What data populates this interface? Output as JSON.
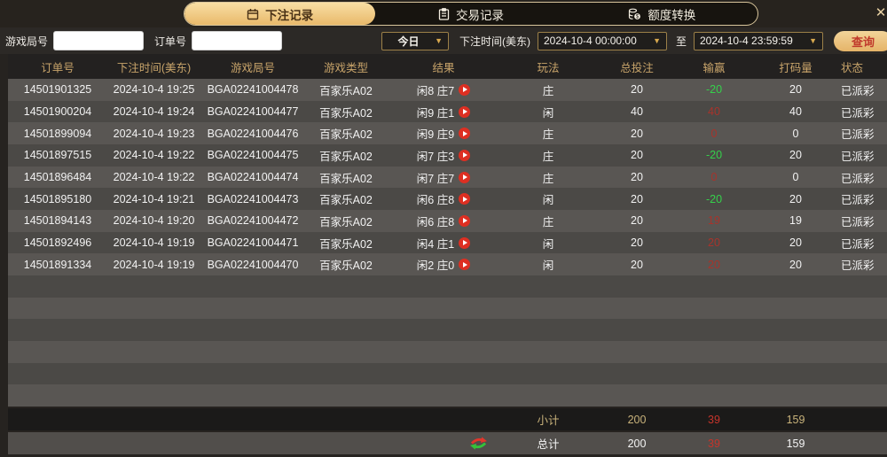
{
  "tabs": [
    {
      "label": "下注记录",
      "icon": "calendar-icon",
      "active": true
    },
    {
      "label": "交易记录",
      "icon": "clipboard-icon",
      "active": false
    },
    {
      "label": "额度转换",
      "icon": "coins-icon",
      "active": false
    }
  ],
  "close_glyph": "✕",
  "filters": {
    "game_round_label": "游戏局号",
    "order_no_label": "订单号",
    "game_round_placeholder": "",
    "order_no_placeholder": "",
    "range_selected": "今日",
    "bet_time_label": "下注时间(美东)",
    "start_time": "2024-10-4 00:00:00",
    "to_label": "至",
    "end_time": "2024-10-4 23:59:59",
    "search_button": "查询",
    "dropdown_arrow": "▼"
  },
  "table": {
    "headers": [
      "订单号",
      "下注时间(美东)",
      "游戏局号",
      "游戏类型",
      "结果",
      "玩法",
      "总投注",
      "输赢",
      "打码量",
      "状态"
    ],
    "rows": [
      {
        "order": "14501901325",
        "time": "2024-10-4 19:25",
        "round": "BGA02241004478",
        "game": "百家乐A02",
        "result": "闲8 庄7",
        "play": "庄",
        "bet": "20",
        "winloss": "-20",
        "turnover": "20",
        "status": "已派彩"
      },
      {
        "order": "14501900204",
        "time": "2024-10-4 19:24",
        "round": "BGA02241004477",
        "game": "百家乐A02",
        "result": "闲9 庄1",
        "play": "闲",
        "bet": "40",
        "winloss": "40",
        "turnover": "40",
        "status": "已派彩"
      },
      {
        "order": "14501899094",
        "time": "2024-10-4 19:23",
        "round": "BGA02241004476",
        "game": "百家乐A02",
        "result": "闲9 庄9",
        "play": "庄",
        "bet": "20",
        "winloss": "0",
        "turnover": "0",
        "status": "已派彩"
      },
      {
        "order": "14501897515",
        "time": "2024-10-4 19:22",
        "round": "BGA02241004475",
        "game": "百家乐A02",
        "result": "闲7 庄3",
        "play": "庄",
        "bet": "20",
        "winloss": "-20",
        "turnover": "20",
        "status": "已派彩"
      },
      {
        "order": "14501896484",
        "time": "2024-10-4 19:22",
        "round": "BGA02241004474",
        "game": "百家乐A02",
        "result": "闲7 庄7",
        "play": "庄",
        "bet": "20",
        "winloss": "0",
        "turnover": "0",
        "status": "已派彩"
      },
      {
        "order": "14501895180",
        "time": "2024-10-4 19:21",
        "round": "BGA02241004473",
        "game": "百家乐A02",
        "result": "闲6 庄8",
        "play": "闲",
        "bet": "20",
        "winloss": "-20",
        "turnover": "20",
        "status": "已派彩"
      },
      {
        "order": "14501894143",
        "time": "2024-10-4 19:20",
        "round": "BGA02241004472",
        "game": "百家乐A02",
        "result": "闲6 庄8",
        "play": "庄",
        "bet": "20",
        "winloss": "19",
        "turnover": "19",
        "status": "已派彩"
      },
      {
        "order": "14501892496",
        "time": "2024-10-4 19:19",
        "round": "BGA02241004471",
        "game": "百家乐A02",
        "result": "闲4 庄1",
        "play": "闲",
        "bet": "20",
        "winloss": "20",
        "turnover": "20",
        "status": "已派彩"
      },
      {
        "order": "14501891334",
        "time": "2024-10-4 19:19",
        "round": "BGA02241004470",
        "game": "百家乐A02",
        "result": "闲2 庄0",
        "play": "闲",
        "bet": "20",
        "winloss": "20",
        "turnover": "20",
        "status": "已派彩"
      }
    ],
    "empty_row_slots": 15,
    "subtotal": {
      "label": "小计",
      "bet": "200",
      "winloss": "39",
      "turnover": "159"
    },
    "total": {
      "label": "总计",
      "bet": "200",
      "winloss": "39",
      "turnover": "159"
    }
  },
  "colors": {
    "accent_gold": "#e9b96b",
    "header_text": "#c8a46a",
    "win_negative_green": "#35d14b",
    "win_positive_red": "#a8332b",
    "summary_red": "#c5342b",
    "search_button_text": "#c0392b",
    "play_button_red": "#dd2f22"
  }
}
